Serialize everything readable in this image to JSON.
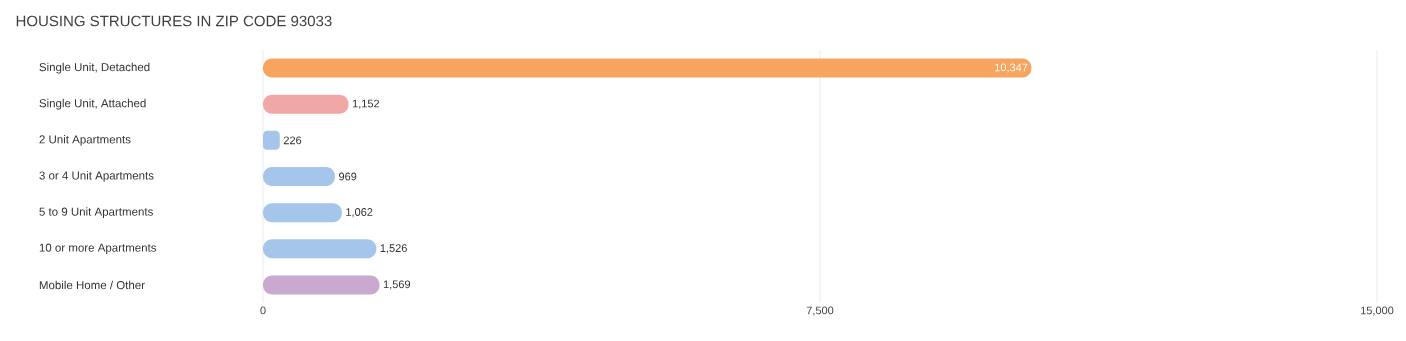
{
  "chart_data": {
    "type": "bar",
    "orientation": "horizontal",
    "title": "HOUSING STRUCTURES IN ZIP CODE 93033",
    "categories": [
      "Single Unit, Detached",
      "Single Unit, Attached",
      "2 Unit Apartments",
      "3 or 4 Unit Apartments",
      "5 to 9 Unit Apartments",
      "10 or more Apartments",
      "Mobile Home / Other"
    ],
    "values": [
      10347,
      1152,
      226,
      969,
      1062,
      1526,
      1569
    ],
    "value_labels": [
      "10,347",
      "1,152",
      "226",
      "969",
      "1,062",
      "1,526",
      "1,569"
    ],
    "colors": [
      "#f6a45e",
      "#f0a8a6",
      "#a5c5ea",
      "#a5c5ea",
      "#a5c5ea",
      "#a5c5ea",
      "#c9a9cf"
    ],
    "xlim": [
      0,
      15000
    ],
    "xticks": [
      0,
      {
        "value": 7500,
        "label": "7,500"
      },
      {
        "value": 15000,
        "label": "15,000"
      }
    ],
    "grid": "x"
  }
}
